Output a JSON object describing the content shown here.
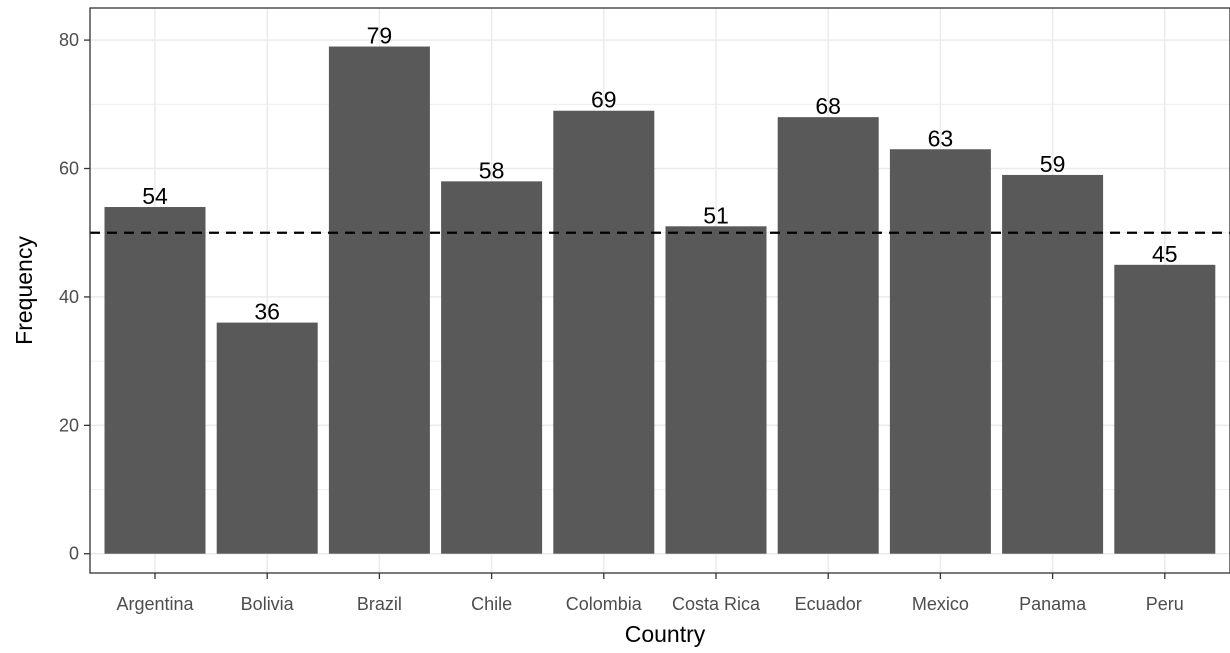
{
  "chart_data": {
    "type": "bar",
    "categories": [
      "Argentina",
      "Bolivia",
      "Brazil",
      "Chile",
      "Colombia",
      "Costa Rica",
      "Ecuador",
      "Mexico",
      "Panama",
      "Peru"
    ],
    "values": [
      54,
      36,
      79,
      58,
      69,
      51,
      68,
      63,
      59,
      45
    ],
    "data_labels": [
      "54",
      "36",
      "79",
      "58",
      "69",
      "51",
      "68",
      "63",
      "59",
      "45"
    ],
    "xlabel": "Country",
    "ylabel": "Frequency",
    "ylim": [
      -3,
      85
    ],
    "y_ticks": [
      0,
      20,
      40,
      60,
      80
    ],
    "reference_line": {
      "y": 50,
      "style": "dashed",
      "color": "#000000"
    },
    "grid": true,
    "bar_color": "#595959",
    "gridline_color": "#ebebeb",
    "panel_border_color": "#333333"
  }
}
